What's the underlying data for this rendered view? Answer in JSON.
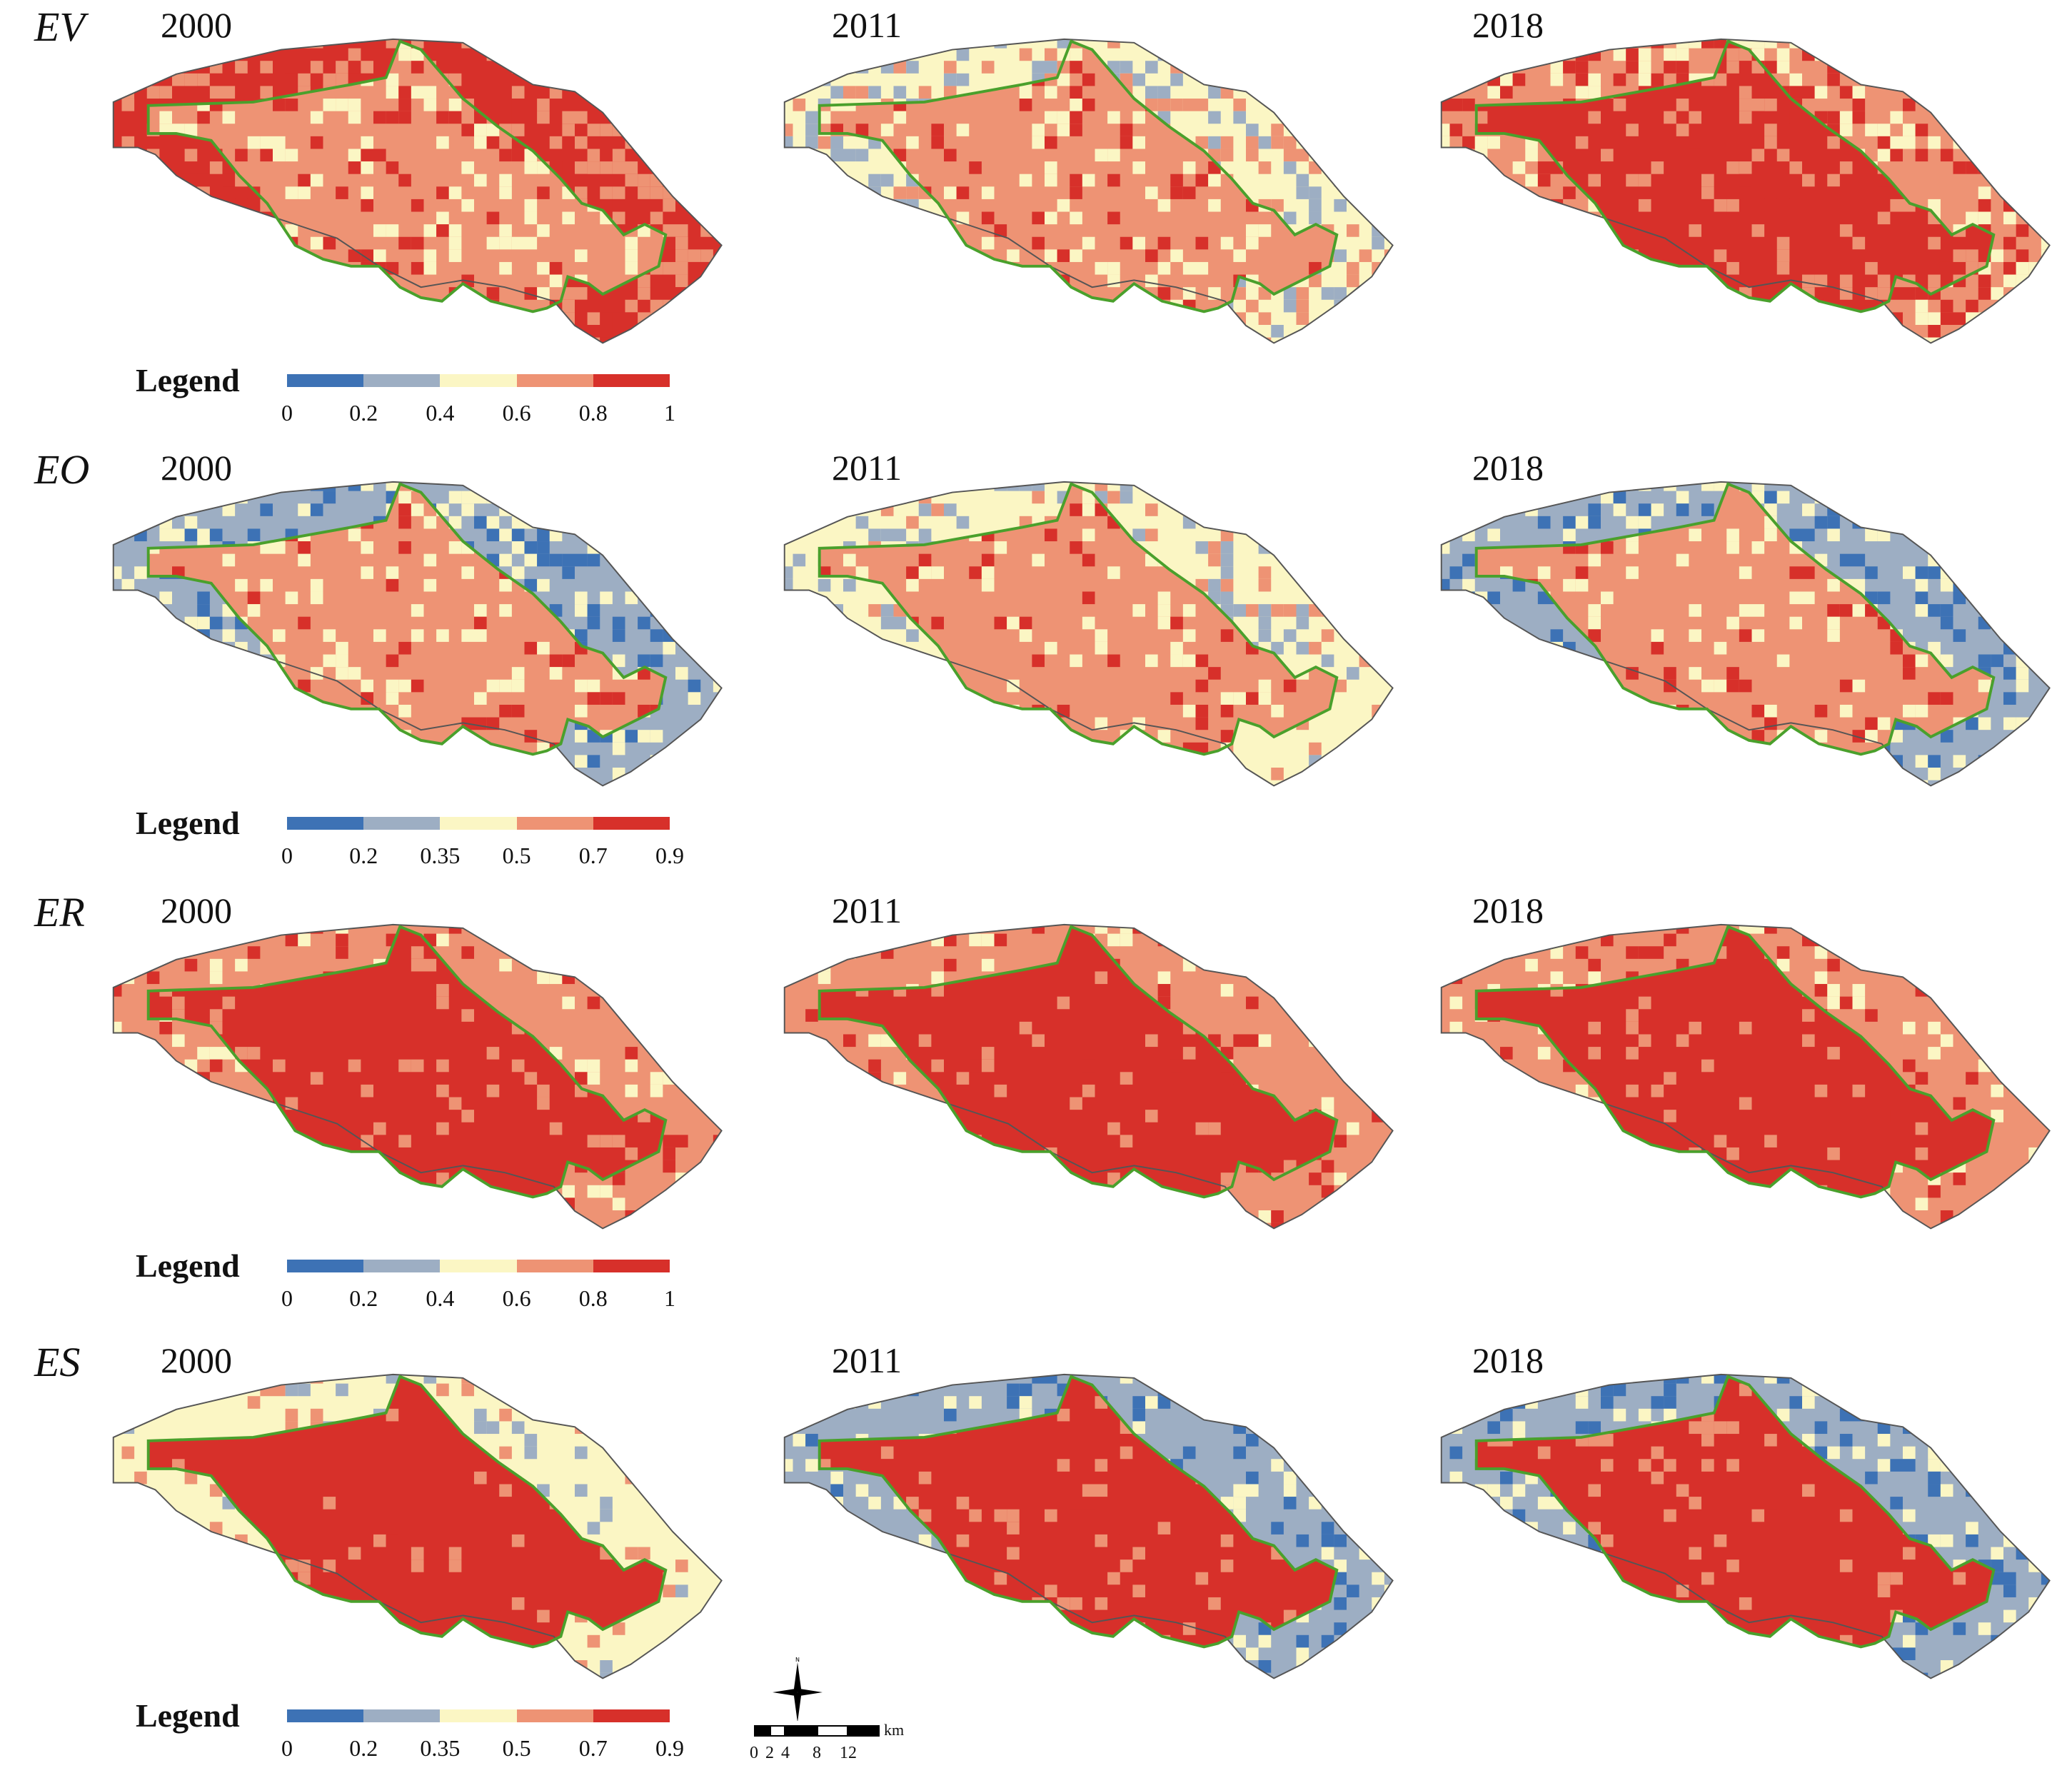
{
  "colors": {
    "c1": "#3d72b5",
    "c2": "#9daec3",
    "c3": "#fbf6c4",
    "c4": "#ee9374",
    "c5": "#d7302a",
    "outline": "#4aa02c",
    "boundary": "#555555"
  },
  "legend_title": "Legend",
  "years": [
    "2000",
    "2011",
    "2018"
  ],
  "rows": [
    {
      "label": "EV",
      "ticks": [
        "0",
        "0.2",
        "0.4",
        "0.6",
        "0.8",
        "1"
      ],
      "levels": [
        {
          "outer": 5,
          "inner": 4,
          "mix": 0.55
        },
        {
          "outer": 3,
          "inner": 4,
          "mix": 0.4
        },
        {
          "outer": 4,
          "inner": 5,
          "mix": 0.45
        }
      ]
    },
    {
      "label": "EO",
      "ticks": [
        "0",
        "0.2",
        "0.35",
        "0.5",
        "0.7",
        "0.9"
      ],
      "levels": [
        {
          "outer": 2,
          "inner": 4,
          "mix": 0.35
        },
        {
          "outer": 3,
          "inner": 4,
          "mix": 0.3
        },
        {
          "outer": 2,
          "inner": 4,
          "mix": 0.35
        }
      ]
    },
    {
      "label": "ER",
      "ticks": [
        "0",
        "0.2",
        "0.4",
        "0.6",
        "0.8",
        "1"
      ],
      "levels": [
        {
          "outer": 4,
          "inner": 5,
          "mix": 0.2
        },
        {
          "outer": 4,
          "inner": 5,
          "mix": 0.2
        },
        {
          "outer": 4,
          "inner": 5,
          "mix": 0.2
        }
      ]
    },
    {
      "label": "ES",
      "ticks": [
        "0",
        "0.2",
        "0.35",
        "0.5",
        "0.7",
        "0.9"
      ],
      "levels": [
        {
          "outer": 3,
          "inner": 5,
          "mix": 0.15
        },
        {
          "outer": 2,
          "inner": 5,
          "mix": 0.25
        },
        {
          "outer": 2,
          "inner": 5,
          "mix": 0.3
        }
      ]
    }
  ],
  "scale": {
    "unit": "km",
    "labels": [
      "0",
      "2",
      "4",
      "8",
      "12"
    ]
  }
}
